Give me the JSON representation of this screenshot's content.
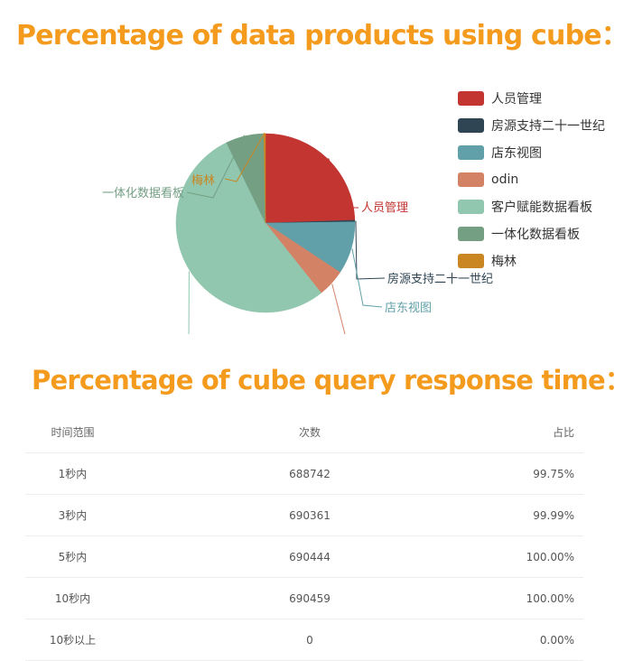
{
  "headings": {
    "cube_usage": "Percentage of data products using cube：",
    "response_time": "Percentage of cube query response time："
  },
  "chart_data": [
    {
      "type": "pie",
      "title": "Percentage of data products using cube：",
      "legend_position": "right",
      "slices": [
        {
          "name": "人员管理",
          "value": 24.5,
          "color": "#c23531"
        },
        {
          "name": "房源支持二十一世纪",
          "value": 0.3,
          "color": "#2f4554"
        },
        {
          "name": "店东视图",
          "value": 9.5,
          "color": "#61a0a8"
        },
        {
          "name": "odin",
          "value": 5.0,
          "color": "#d48265"
        },
        {
          "name": "客户赋能数据看板",
          "value": 53.5,
          "color": "#91c7ae"
        },
        {
          "name": "一体化数据看板",
          "value": 6.9,
          "color": "#749f83"
        },
        {
          "name": "梅林",
          "value": 0.3,
          "color": "#ca8622"
        }
      ]
    },
    {
      "type": "table",
      "title": "Percentage of cube query response time：",
      "columns": [
        "时间范围",
        "次数",
        "占比"
      ],
      "rows": [
        [
          "1秒内",
          "688742",
          "99.75%"
        ],
        [
          "3秒内",
          "690361",
          "99.99%"
        ],
        [
          "5秒内",
          "690444",
          "100.00%"
        ],
        [
          "10秒内",
          "690459",
          "100.00%"
        ],
        [
          "10秒以上",
          "0",
          "0.00%"
        ]
      ]
    }
  ]
}
